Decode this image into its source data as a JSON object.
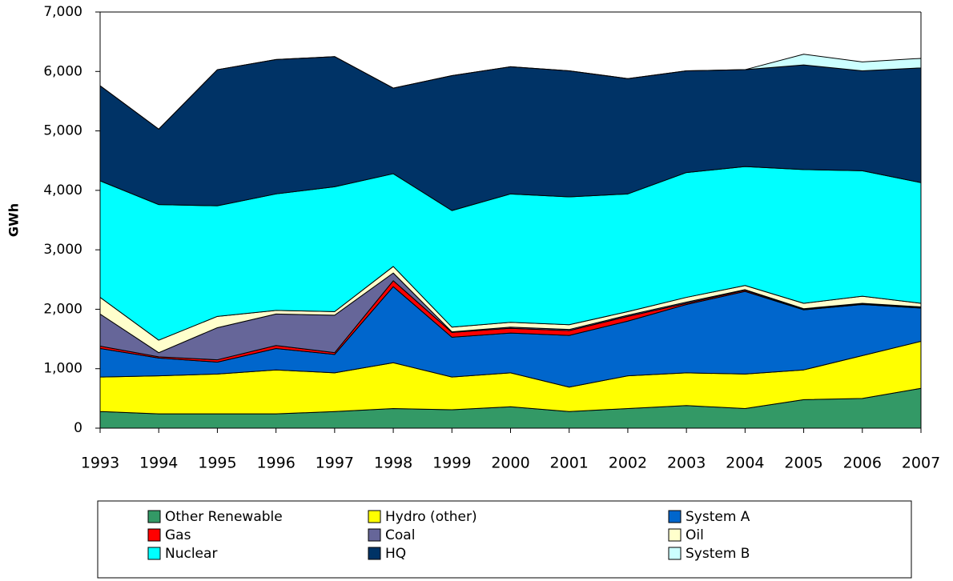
{
  "chart_data": {
    "type": "stacked-area",
    "y_label": "GWh",
    "categories": [
      "1993",
      "1994",
      "1995",
      "1996",
      "1997",
      "1998",
      "1999",
      "2000",
      "2001",
      "2002",
      "2003",
      "2004",
      "2005",
      "2006",
      "2007"
    ],
    "series": [
      {
        "name": "Other Renewable",
        "color": "#339966",
        "values": [
          280,
          240,
          240,
          240,
          280,
          330,
          310,
          360,
          280,
          330,
          380,
          330,
          480,
          500,
          670
        ]
      },
      {
        "name": "Hydro (other)",
        "color": "#ffff00",
        "values": [
          580,
          640,
          670,
          740,
          650,
          770,
          550,
          570,
          410,
          550,
          550,
          580,
          500,
          720,
          790
        ]
      },
      {
        "name": "System A",
        "color": "#0066cc",
        "values": [
          480,
          300,
          200,
          360,
          310,
          1280,
          670,
          670,
          870,
          920,
          1150,
          1390,
          1010,
          860,
          560
        ]
      },
      {
        "name": "Gas",
        "color": "#ff0000",
        "values": [
          40,
          20,
          40,
          50,
          30,
          100,
          80,
          80,
          80,
          80,
          20,
          20,
          10,
          10,
          10
        ]
      },
      {
        "name": "Coal",
        "color": "#666699",
        "values": [
          540,
          70,
          540,
          530,
          630,
          130,
          10,
          20,
          20,
          20,
          20,
          10,
          10,
          10,
          10
        ]
      },
      {
        "name": "Oil",
        "color": "#ffffcc",
        "values": [
          280,
          210,
          190,
          60,
          60,
          110,
          80,
          80,
          80,
          60,
          80,
          70,
          90,
          120,
          60
        ]
      },
      {
        "name": "Nuclear",
        "color": "#00ffff",
        "values": [
          1960,
          2280,
          1860,
          1960,
          2100,
          1560,
          1960,
          2160,
          2150,
          1980,
          2100,
          2000,
          2250,
          2110,
          2030
        ]
      },
      {
        "name": "HQ",
        "color": "#003366",
        "values": [
          1600,
          1270,
          2290,
          2260,
          2190,
          1440,
          2270,
          2140,
          2120,
          1940,
          1710,
          1630,
          1760,
          1680,
          1930
        ]
      },
      {
        "name": "System B",
        "color": "#ccffff",
        "values": [
          0,
          0,
          0,
          0,
          0,
          0,
          0,
          0,
          0,
          0,
          0,
          0,
          180,
          150,
          160
        ]
      }
    ],
    "ylim": [
      0,
      7000
    ],
    "yticks": [
      0,
      {
        "value": 1000,
        "label": "1,000"
      },
      {
        "value": 2000,
        "label": "2,000"
      },
      {
        "value": 3000,
        "label": "3,000"
      },
      {
        "value": 4000,
        "label": "4,000"
      },
      {
        "value": 5000,
        "label": "5,000"
      },
      {
        "value": 6000,
        "label": "6,000"
      },
      {
        "value": 7000,
        "label": "7,000"
      }
    ],
    "legend_position": "bottom"
  }
}
